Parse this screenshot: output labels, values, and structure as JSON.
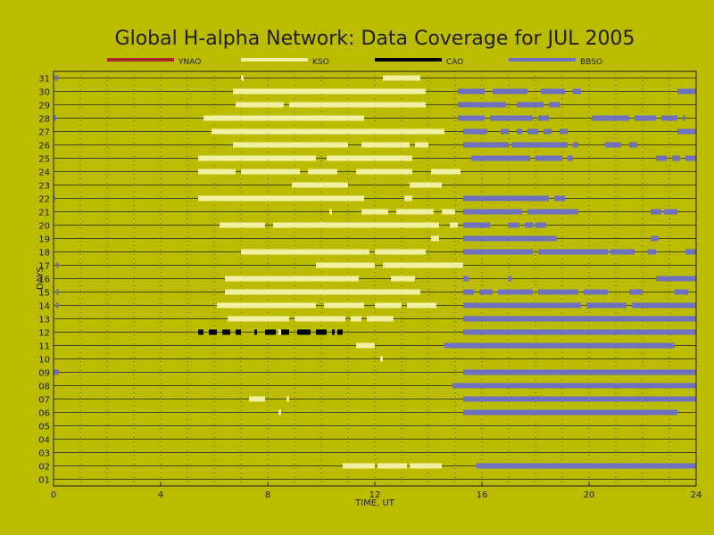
{
  "chart_data": {
    "type": "timeline",
    "title": "Global H-alpha Network: Data Coverage for JUL 2005",
    "xlabel": "TIME, UT",
    "ylabel": "DAYS",
    "xlim": [
      0,
      24
    ],
    "ylim": [
      0.5,
      31.5
    ],
    "xticks": [
      0,
      4,
      8,
      12,
      16,
      20,
      24
    ],
    "ytick_labels": [
      "01",
      "02",
      "03",
      "04",
      "05",
      "06",
      "07",
      "08",
      "09",
      "10",
      "11",
      "12",
      "13",
      "14",
      "15",
      "16",
      "17",
      "18",
      "19",
      "20",
      "21",
      "22",
      "23",
      "24",
      "25",
      "26",
      "27",
      "28",
      "29",
      "30",
      "31"
    ],
    "grid": true,
    "legend_position": "top",
    "series": [
      {
        "name": "YNAO",
        "color": "#a52a2a",
        "segments": []
      },
      {
        "name": "KSO",
        "color": "#f0f0a0",
        "segments": [
          {
            "day": 31,
            "start": 12.3,
            "end": 13.7
          },
          {
            "day": 31,
            "start": 7.0,
            "end": 7.1
          },
          {
            "day": 30,
            "start": 6.7,
            "end": 13.9
          },
          {
            "day": 29,
            "start": 6.8,
            "end": 8.6
          },
          {
            "day": 29,
            "start": 8.8,
            "end": 13.9
          },
          {
            "day": 28,
            "start": 5.6,
            "end": 11.6
          },
          {
            "day": 27,
            "start": 5.9,
            "end": 14.6
          },
          {
            "day": 26,
            "start": 6.7,
            "end": 11.0
          },
          {
            "day": 26,
            "start": 11.5,
            "end": 13.3
          },
          {
            "day": 26,
            "start": 13.5,
            "end": 14.0
          },
          {
            "day": 25,
            "start": 5.4,
            "end": 9.8
          },
          {
            "day": 25,
            "start": 10.2,
            "end": 13.4
          },
          {
            "day": 24,
            "start": 5.4,
            "end": 6.8
          },
          {
            "day": 24,
            "start": 7.0,
            "end": 9.2
          },
          {
            "day": 24,
            "start": 9.5,
            "end": 10.6
          },
          {
            "day": 24,
            "start": 11.3,
            "end": 13.4
          },
          {
            "day": 24,
            "start": 14.1,
            "end": 15.2
          },
          {
            "day": 23,
            "start": 8.9,
            "end": 11.0
          },
          {
            "day": 23,
            "start": 13.3,
            "end": 14.5
          },
          {
            "day": 22,
            "start": 5.4,
            "end": 11.6
          },
          {
            "day": 22,
            "start": 13.1,
            "end": 13.4
          },
          {
            "day": 21,
            "start": 10.3,
            "end": 10.4
          },
          {
            "day": 21,
            "start": 11.5,
            "end": 12.5
          },
          {
            "day": 21,
            "start": 12.8,
            "end": 14.2
          },
          {
            "day": 21,
            "start": 14.5,
            "end": 15.0
          },
          {
            "day": 20,
            "start": 6.2,
            "end": 7.9
          },
          {
            "day": 20,
            "start": 8.2,
            "end": 14.4
          },
          {
            "day": 20,
            "start": 14.8,
            "end": 15.1
          },
          {
            "day": 19,
            "start": 14.1,
            "end": 14.4
          },
          {
            "day": 18,
            "start": 7.0,
            "end": 11.8
          },
          {
            "day": 18,
            "start": 12.0,
            "end": 13.9
          },
          {
            "day": 17,
            "start": 9.8,
            "end": 12.0
          },
          {
            "day": 17,
            "start": 12.3,
            "end": 15.3
          },
          {
            "day": 16,
            "start": 6.4,
            "end": 11.4
          },
          {
            "day": 16,
            "start": 12.6,
            "end": 13.5
          },
          {
            "day": 15,
            "start": 6.4,
            "end": 13.7
          },
          {
            "day": 14,
            "start": 6.1,
            "end": 9.8
          },
          {
            "day": 14,
            "start": 10.1,
            "end": 11.6
          },
          {
            "day": 14,
            "start": 12.0,
            "end": 13.0
          },
          {
            "day": 14,
            "start": 13.2,
            "end": 14.3
          },
          {
            "day": 13,
            "start": 6.5,
            "end": 8.8
          },
          {
            "day": 13,
            "start": 9.0,
            "end": 10.9
          },
          {
            "day": 13,
            "start": 11.1,
            "end": 11.5
          },
          {
            "day": 13,
            "start": 11.7,
            "end": 12.7
          },
          {
            "day": 12,
            "start": 8.4,
            "end": 8.5
          },
          {
            "day": 12,
            "start": 8.7,
            "end": 8.8
          },
          {
            "day": 11,
            "start": 11.3,
            "end": 12.0
          },
          {
            "day": 10,
            "start": 12.2,
            "end": 12.3
          },
          {
            "day": 7,
            "start": 7.3,
            "end": 7.9
          },
          {
            "day": 7,
            "start": 8.7,
            "end": 8.8
          },
          {
            "day": 6,
            "start": 8.4,
            "end": 8.5
          },
          {
            "day": 2,
            "start": 10.8,
            "end": 12.0
          },
          {
            "day": 2,
            "start": 12.1,
            "end": 13.2
          },
          {
            "day": 2,
            "start": 13.3,
            "end": 14.5
          }
        ]
      },
      {
        "name": "CAO",
        "color": "#000000",
        "segments": [
          {
            "day": 12,
            "start": 5.4,
            "end": 5.6
          },
          {
            "day": 12,
            "start": 5.8,
            "end": 6.1
          },
          {
            "day": 12,
            "start": 6.3,
            "end": 6.6
          },
          {
            "day": 12,
            "start": 6.8,
            "end": 7.0
          },
          {
            "day": 12,
            "start": 7.5,
            "end": 7.6
          },
          {
            "day": 12,
            "start": 7.9,
            "end": 8.3
          },
          {
            "day": 12,
            "start": 8.5,
            "end": 8.8
          },
          {
            "day": 12,
            "start": 9.1,
            "end": 9.6
          },
          {
            "day": 12,
            "start": 9.8,
            "end": 10.2
          },
          {
            "day": 12,
            "start": 10.4,
            "end": 10.5
          },
          {
            "day": 12,
            "start": 10.6,
            "end": 10.8
          }
        ]
      },
      {
        "name": "BBSO",
        "color": "#7070c0",
        "segments": [
          {
            "day": 31,
            "start": 0.05,
            "end": 0.15
          },
          {
            "day": 30,
            "start": 15.1,
            "end": 16.1
          },
          {
            "day": 30,
            "start": 16.4,
            "end": 17.7
          },
          {
            "day": 30,
            "start": 18.2,
            "end": 19.1
          },
          {
            "day": 30,
            "start": 19.4,
            "end": 19.7
          },
          {
            "day": 30,
            "start": 23.3,
            "end": 24.0
          },
          {
            "day": 29,
            "start": 15.1,
            "end": 16.9
          },
          {
            "day": 29,
            "start": 17.3,
            "end": 18.3
          },
          {
            "day": 29,
            "start": 18.5,
            "end": 18.9
          },
          {
            "day": 28,
            "start": 0.0,
            "end": 0.1
          },
          {
            "day": 28,
            "start": 15.1,
            "end": 16.1
          },
          {
            "day": 28,
            "start": 16.3,
            "end": 17.9
          },
          {
            "day": 28,
            "start": 18.1,
            "end": 18.5
          },
          {
            "day": 28,
            "start": 20.1,
            "end": 21.5
          },
          {
            "day": 28,
            "start": 21.7,
            "end": 22.5
          },
          {
            "day": 28,
            "start": 22.7,
            "end": 23.3
          },
          {
            "day": 28,
            "start": 23.5,
            "end": 23.6
          },
          {
            "day": 27,
            "start": 15.3,
            "end": 16.2
          },
          {
            "day": 27,
            "start": 16.7,
            "end": 17.0
          },
          {
            "day": 27,
            "start": 17.3,
            "end": 17.5
          },
          {
            "day": 27,
            "start": 17.7,
            "end": 18.1
          },
          {
            "day": 27,
            "start": 18.3,
            "end": 18.6
          },
          {
            "day": 27,
            "start": 18.9,
            "end": 19.2
          },
          {
            "day": 27,
            "start": 23.3,
            "end": 24.0
          },
          {
            "day": 26,
            "start": 15.3,
            "end": 17.0
          },
          {
            "day": 26,
            "start": 17.1,
            "end": 19.2
          },
          {
            "day": 26,
            "start": 19.4,
            "end": 19.6
          },
          {
            "day": 26,
            "start": 20.6,
            "end": 21.2
          },
          {
            "day": 26,
            "start": 21.5,
            "end": 21.8
          },
          {
            "day": 25,
            "start": 15.6,
            "end": 17.8
          },
          {
            "day": 25,
            "start": 18.0,
            "end": 19.0
          },
          {
            "day": 25,
            "start": 19.2,
            "end": 19.4
          },
          {
            "day": 25,
            "start": 22.5,
            "end": 22.9
          },
          {
            "day": 25,
            "start": 23.1,
            "end": 23.4
          },
          {
            "day": 25,
            "start": 23.6,
            "end": 24.0
          },
          {
            "day": 22,
            "start": 0.0,
            "end": 0.05
          },
          {
            "day": 22,
            "start": 15.3,
            "end": 18.5
          },
          {
            "day": 22,
            "start": 18.7,
            "end": 19.1
          },
          {
            "day": 21,
            "start": 15.3,
            "end": 17.5
          },
          {
            "day": 21,
            "start": 17.7,
            "end": 19.6
          },
          {
            "day": 21,
            "start": 22.3,
            "end": 22.7
          },
          {
            "day": 21,
            "start": 22.8,
            "end": 23.3
          },
          {
            "day": 20,
            "start": 15.3,
            "end": 16.3
          },
          {
            "day": 20,
            "start": 17.0,
            "end": 17.4
          },
          {
            "day": 20,
            "start": 17.6,
            "end": 17.9
          },
          {
            "day": 20,
            "start": 18.0,
            "end": 18.4
          },
          {
            "day": 19,
            "start": 15.3,
            "end": 18.8
          },
          {
            "day": 19,
            "start": 22.3,
            "end": 22.6
          },
          {
            "day": 18,
            "start": 15.3,
            "end": 17.9
          },
          {
            "day": 18,
            "start": 18.1,
            "end": 20.7
          },
          {
            "day": 18,
            "start": 20.8,
            "end": 21.7
          },
          {
            "day": 18,
            "start": 22.2,
            "end": 22.5
          },
          {
            "day": 18,
            "start": 23.6,
            "end": 24.0
          },
          {
            "day": 17,
            "start": 0.1,
            "end": 0.2
          },
          {
            "day": 16,
            "start": 15.3,
            "end": 15.5
          },
          {
            "day": 16,
            "start": 17.0,
            "end": 17.1
          },
          {
            "day": 16,
            "start": 22.5,
            "end": 24.0
          },
          {
            "day": 15,
            "start": 0.1,
            "end": 0.2
          },
          {
            "day": 15,
            "start": 15.3,
            "end": 15.7
          },
          {
            "day": 15,
            "start": 15.9,
            "end": 16.4
          },
          {
            "day": 15,
            "start": 16.6,
            "end": 17.9
          },
          {
            "day": 15,
            "start": 18.1,
            "end": 19.6
          },
          {
            "day": 15,
            "start": 19.8,
            "end": 20.7
          },
          {
            "day": 15,
            "start": 21.5,
            "end": 22.0
          },
          {
            "day": 15,
            "start": 23.2,
            "end": 23.7
          },
          {
            "day": 14,
            "start": 0.1,
            "end": 0.2
          },
          {
            "day": 14,
            "start": 15.3,
            "end": 19.7
          },
          {
            "day": 14,
            "start": 19.9,
            "end": 21.4
          },
          {
            "day": 14,
            "start": 21.6,
            "end": 24.0
          },
          {
            "day": 13,
            "start": 15.3,
            "end": 24.0
          },
          {
            "day": 12,
            "start": 15.3,
            "end": 24.0
          },
          {
            "day": 11,
            "start": 14.6,
            "end": 23.2
          },
          {
            "day": 9,
            "start": 0.0,
            "end": 0.2
          },
          {
            "day": 9,
            "start": 15.3,
            "end": 24.0
          },
          {
            "day": 8,
            "start": 14.9,
            "end": 24.0
          },
          {
            "day": 7,
            "start": 15.3,
            "end": 24.0
          },
          {
            "day": 6,
            "start": 15.3,
            "end": 23.3
          },
          {
            "day": 2,
            "start": 15.8,
            "end": 24.0
          }
        ]
      }
    ]
  }
}
